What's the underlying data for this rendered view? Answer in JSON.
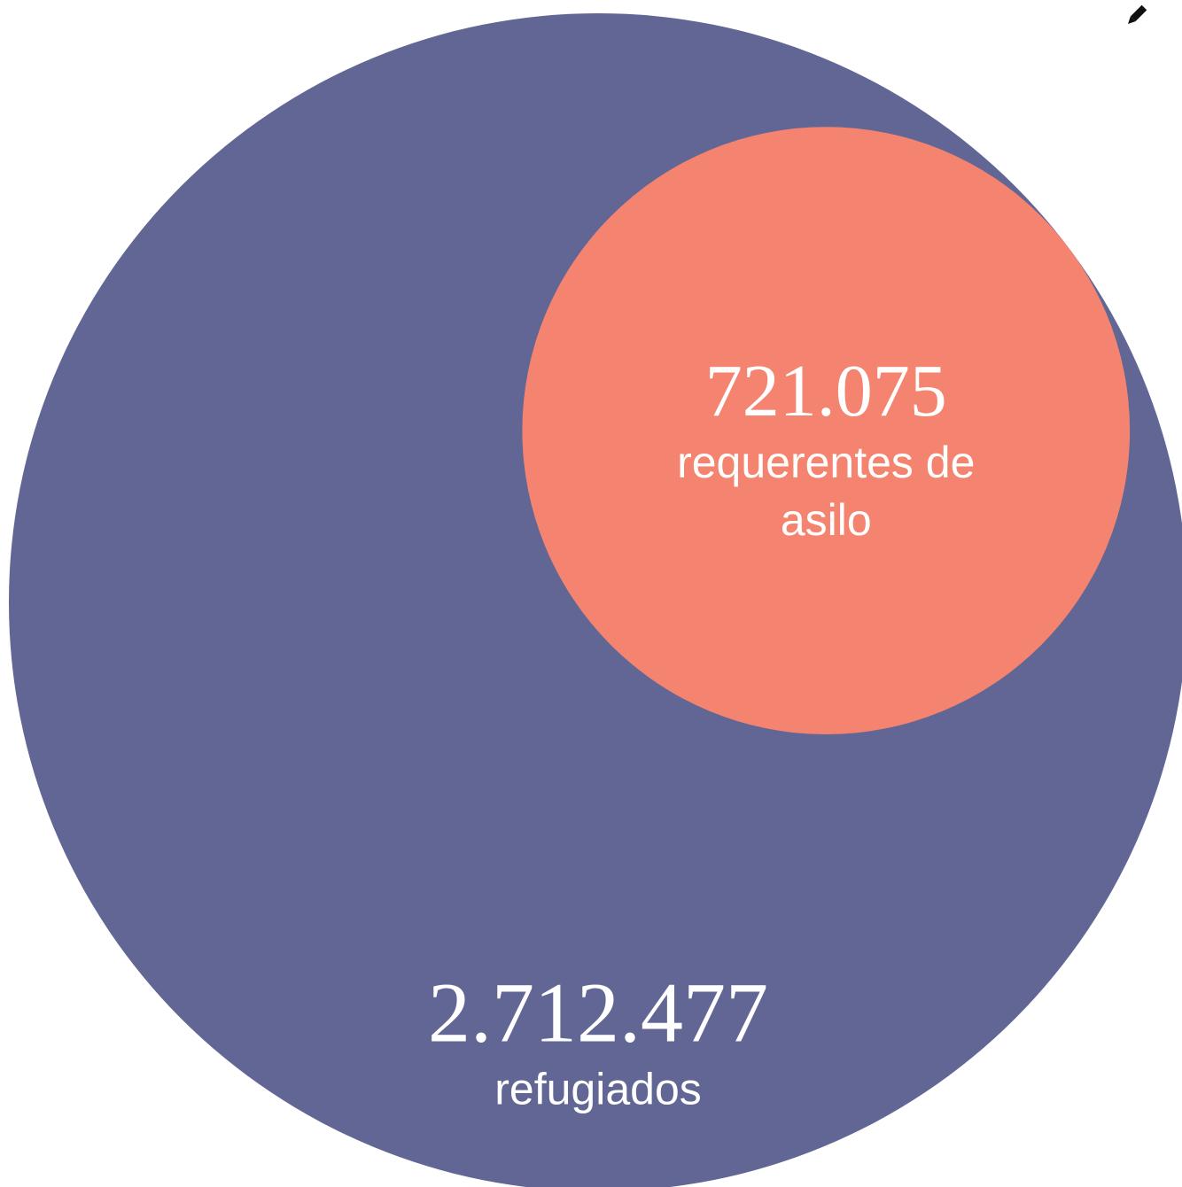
{
  "chart_data": {
    "type": "nested-circles",
    "categories": [
      "refugiados",
      "requerentes de asilo"
    ],
    "values": [
      2712477,
      721075
    ],
    "value_labels": [
      "2.712.477",
      "721.075"
    ],
    "colors": [
      "#626694",
      "#f4846f"
    ]
  }
}
